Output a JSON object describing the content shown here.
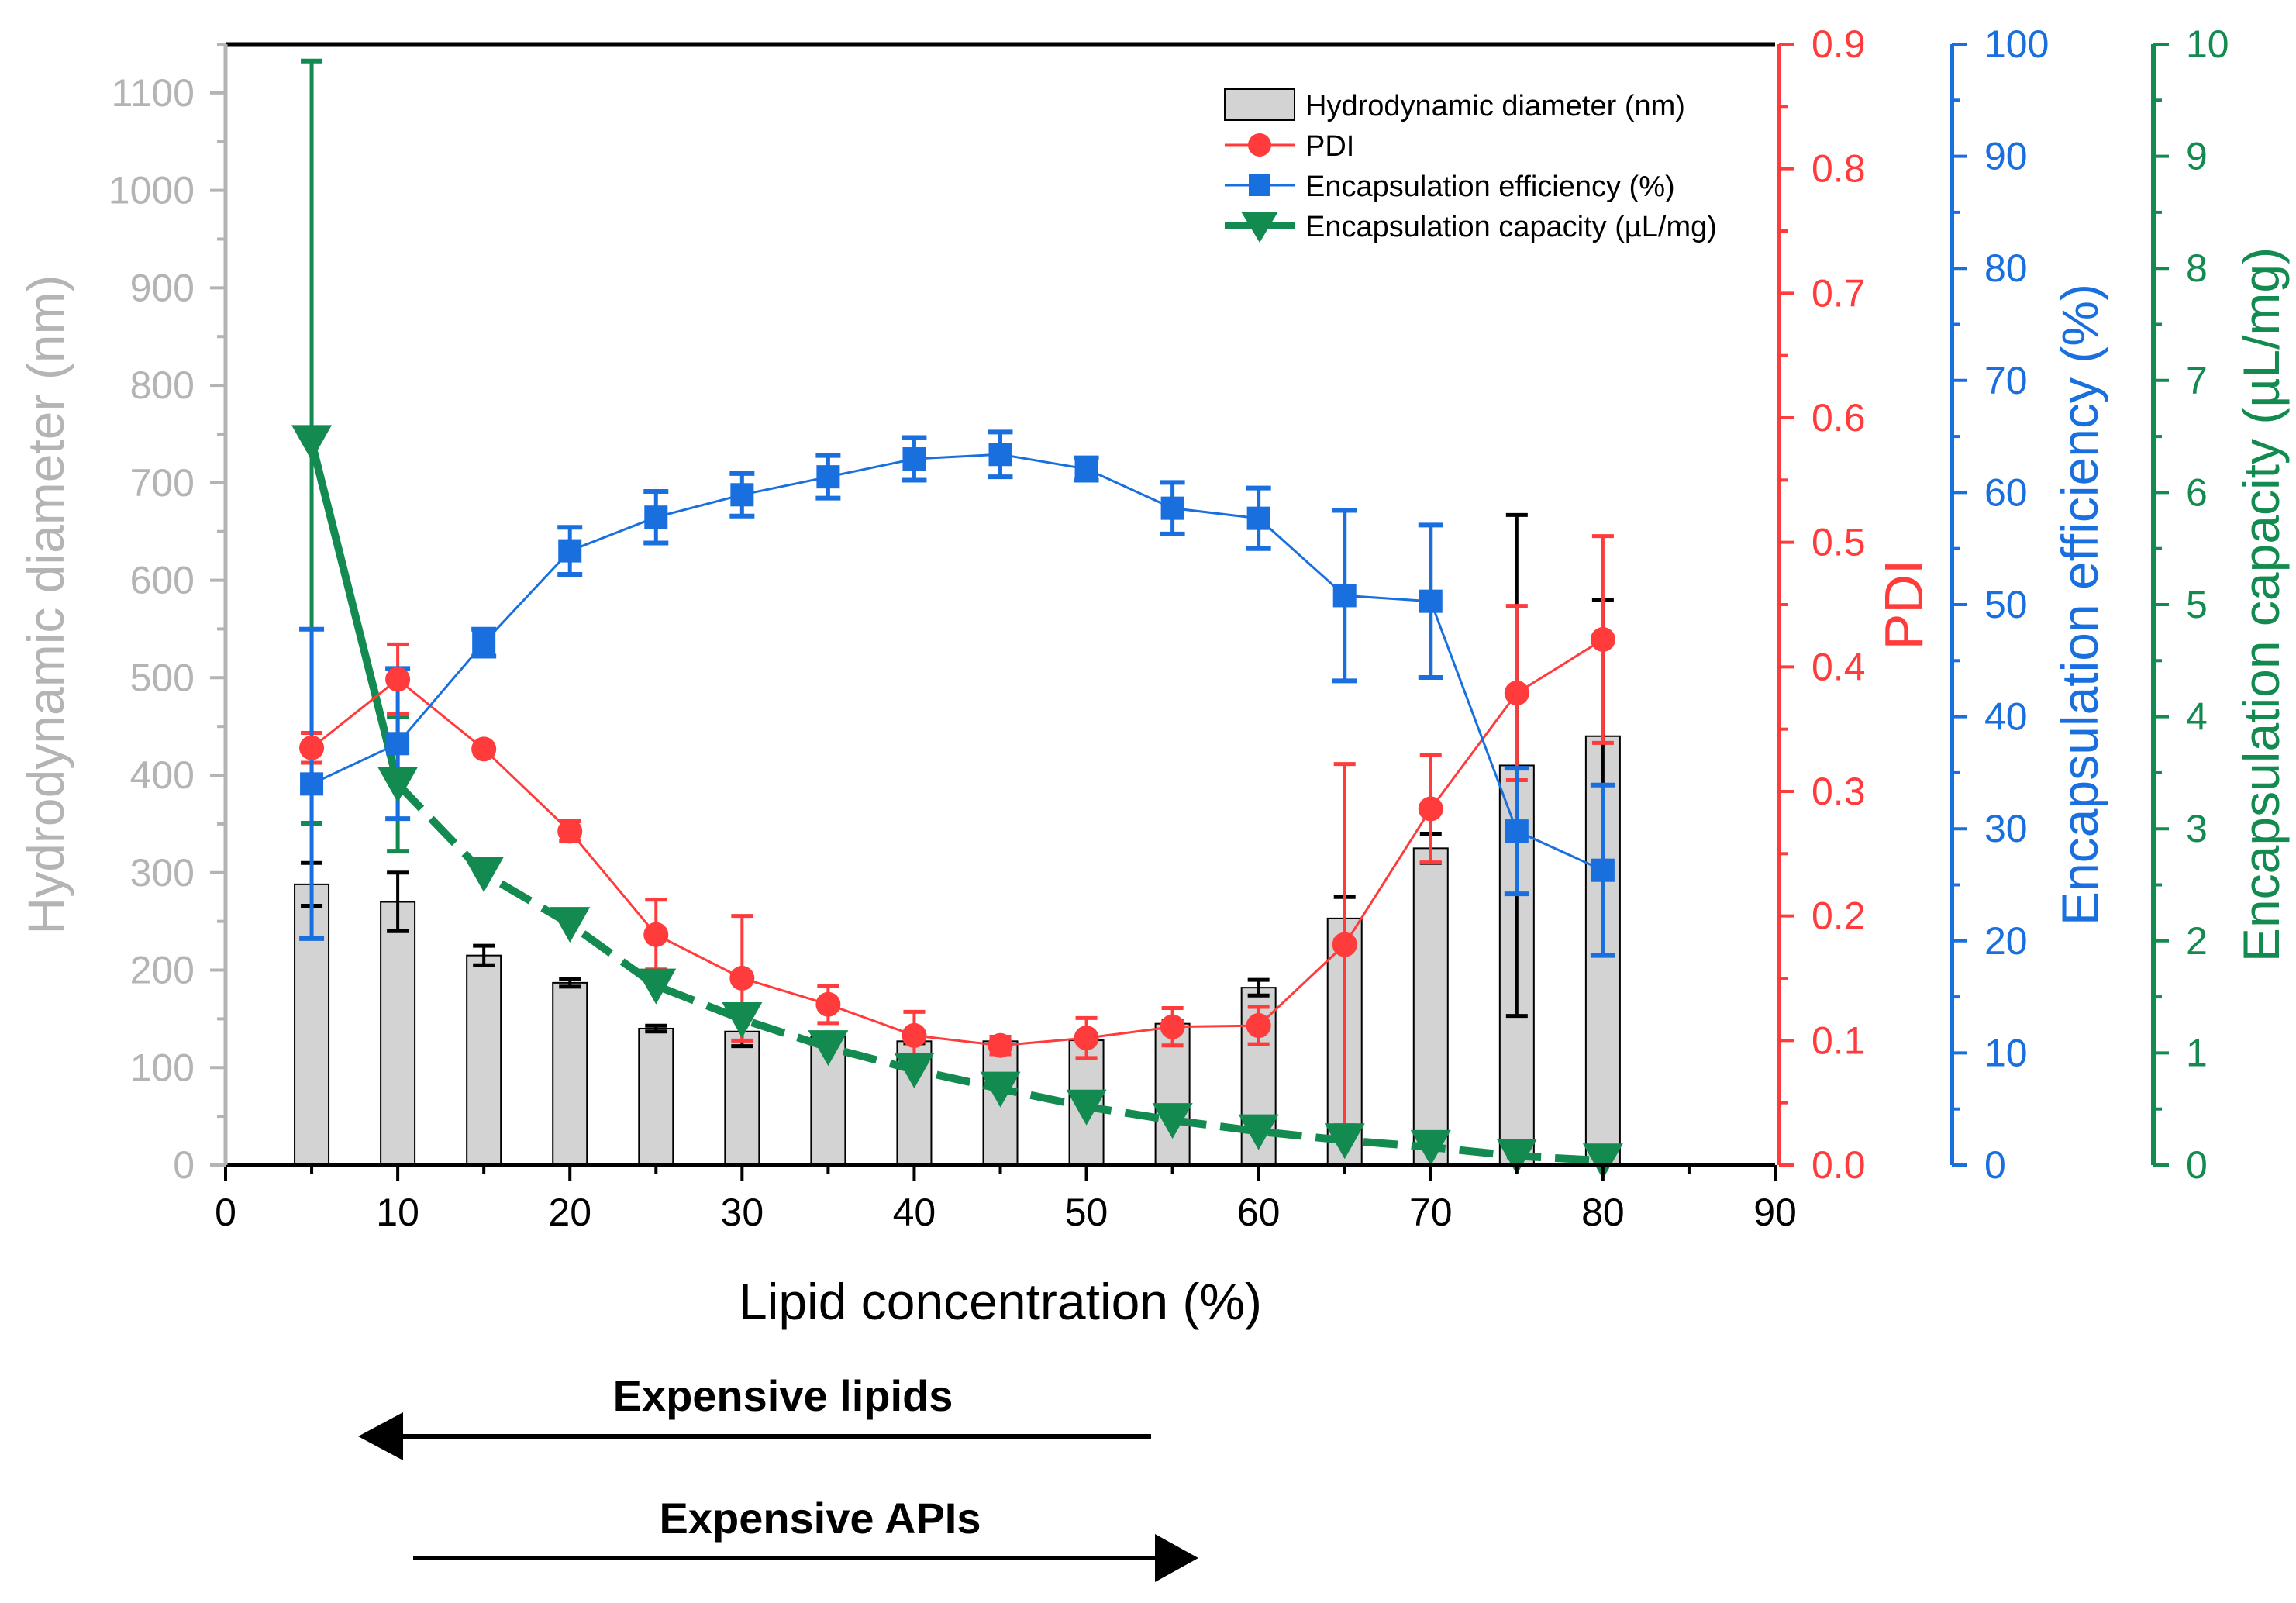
{
  "chart_data": {
    "type": "bar",
    "xlabel": "Lipid concentration (%)",
    "xlim": [
      0,
      90
    ],
    "x_ticks": [
      "0",
      "10",
      "20",
      "30",
      "40",
      "50",
      "60",
      "70",
      "80",
      "90"
    ],
    "x": [
      5,
      10,
      15,
      20,
      25,
      30,
      35,
      40,
      45,
      50,
      55,
      60,
      65,
      70,
      75,
      80
    ],
    "series": [
      {
        "name": "Hydrodynamic diameter (nm)",
        "kind": "bar",
        "axis": "left",
        "color": "#d3d3d3",
        "values": [
          288,
          270,
          215,
          187,
          140,
          137,
          132,
          127,
          127,
          128,
          145,
          182,
          253,
          325,
          410,
          440
        ],
        "error": [
          22,
          30,
          10,
          4,
          3,
          15,
          3,
          2,
          2,
          2,
          3,
          8,
          22,
          15,
          257,
          140
        ]
      },
      {
        "name": "PDI",
        "kind": "line",
        "axis": "right1",
        "color": "#ff3b3b",
        "values": [
          0.335,
          0.39,
          0.334,
          0.268,
          0.185,
          0.15,
          0.129,
          0.104,
          0.096,
          0.102,
          0.111,
          0.112,
          0.177,
          0.286,
          0.379,
          0.422
        ],
        "error": [
          0.012,
          0.028,
          0.004,
          0.008,
          0.028,
          0.05,
          0.015,
          0.019,
          0.007,
          0.016,
          0.015,
          0.015,
          0.145,
          0.043,
          0.07,
          0.083
        ]
      },
      {
        "name": "Encapsulation efficiency (%)",
        "kind": "line",
        "axis": "right2",
        "color": "#1a6fdf",
        "values": [
          34,
          37.6,
          46.6,
          54.8,
          57.8,
          59.8,
          61.4,
          63,
          63.4,
          62.1,
          58.6,
          57.7,
          50.8,
          50.3,
          29.8,
          26.3
        ],
        "error": [
          13.8,
          6.7,
          1.2,
          2.1,
          2.3,
          1.9,
          1.9,
          1.9,
          2.0,
          1.0,
          2.3,
          2.7,
          7.6,
          6.8,
          5.6,
          7.6
        ]
      },
      {
        "name": "Encapsulation capacity (µL/mg)",
        "kind": "line",
        "axis": "right3",
        "color": "#138a4f",
        "values": [
          6.45,
          3.4,
          2.6,
          2.15,
          1.6,
          1.3,
          1.05,
          0.85,
          0.68,
          0.52,
          0.4,
          0.3,
          0.22,
          0.16,
          0.08,
          0.04
        ],
        "error": [
          3.4,
          0.6,
          0,
          0,
          0,
          0,
          0,
          0,
          0,
          0,
          0,
          0,
          0,
          0,
          0,
          0
        ]
      }
    ],
    "axes": [
      {
        "id": "left",
        "label": "Hydrodynamic diameter (nm)",
        "range": [
          0,
          1150
        ],
        "color": "#b4b4b4",
        "ticks": [
          "0",
          "100",
          "200",
          "300",
          "400",
          "500",
          "600",
          "700",
          "800",
          "900",
          "1000",
          "1100"
        ]
      },
      {
        "id": "right1",
        "label": "PDI",
        "range": [
          0,
          0.9
        ],
        "color": "#ff3b3b",
        "ticks": [
          "0.0",
          "0.1",
          "0.2",
          "0.3",
          "0.4",
          "0.5",
          "0.6",
          "0.7",
          "0.8",
          "0.9"
        ]
      },
      {
        "id": "right2",
        "label": "Encapsulation efficiency (%)",
        "range": [
          0,
          100
        ],
        "color": "#1a6fdf",
        "ticks": [
          "0",
          "10",
          "20",
          "30",
          "40",
          "50",
          "60",
          "70",
          "80",
          "90",
          "100"
        ]
      },
      {
        "id": "right3",
        "label": "Encapsulation capacity (µL/mg)",
        "range": [
          0,
          10
        ],
        "color": "#138a4f",
        "ticks": [
          "0",
          "1",
          "2",
          "3",
          "4",
          "5",
          "6",
          "7",
          "8",
          "9",
          "10"
        ]
      }
    ],
    "legend": {
      "placement": "top-right",
      "entries": [
        "Hydrodynamic diameter (nm)",
        "PDI",
        "Encapsulation efficiency (%)",
        "Encapsulation capacity (µL/mg)"
      ]
    },
    "annotations": [
      {
        "text": "Expensive lipids",
        "direction": "left"
      },
      {
        "text": "Expensive APIs",
        "direction": "right"
      }
    ]
  }
}
